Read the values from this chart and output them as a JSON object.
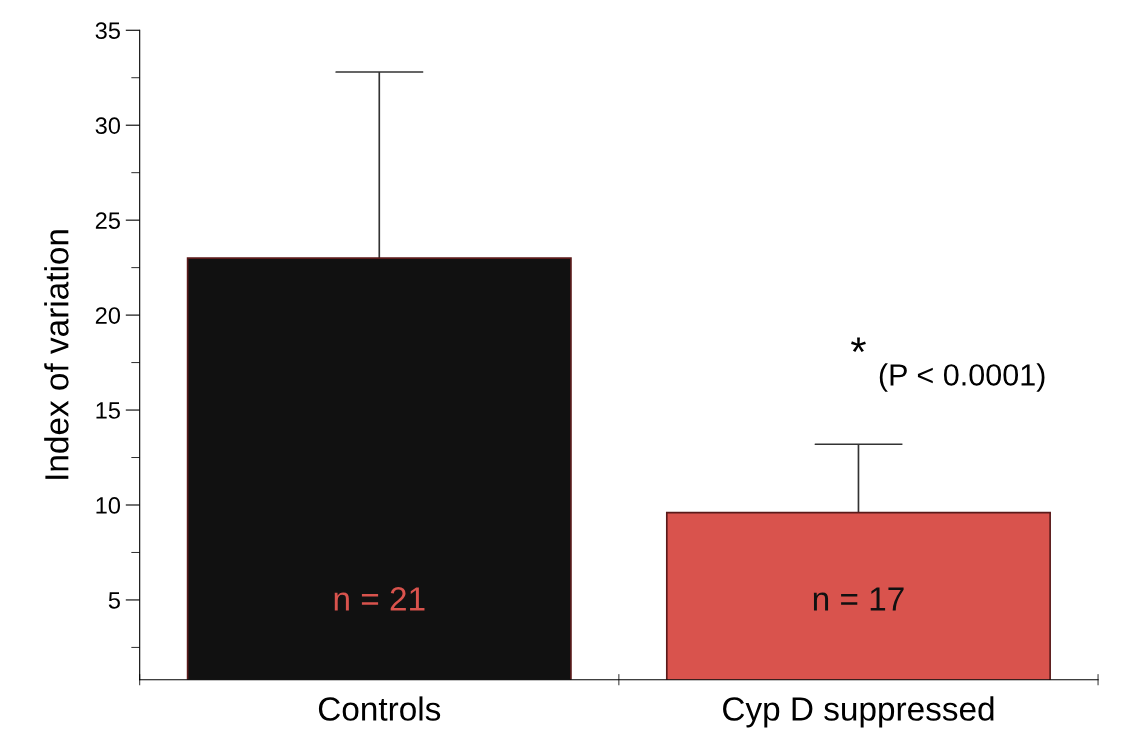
{
  "chart_data": {
    "type": "bar",
    "ylabel": "Index of variation",
    "categories": [
      "Controls",
      "Cyp D suppressed"
    ],
    "values": [
      23.0,
      9.6
    ],
    "errors": [
      9.8,
      3.6
    ],
    "colors": [
      "#111111",
      "#d9534d"
    ],
    "ylim": [
      0.8,
      35
    ],
    "yticks": [
      {
        "value": 2.5,
        "label": null
      },
      5,
      {
        "value": 7.5,
        "label": null
      },
      10,
      {
        "value": 12.5,
        "label": null
      },
      15,
      {
        "value": 17.5,
        "label": null
      },
      20,
      {
        "value": 22.5,
        "label": null
      },
      25,
      {
        "value": 27.5,
        "label": null
      },
      30,
      {
        "value": 32.5,
        "label": null
      },
      35
    ],
    "annotations": [
      "n = 21",
      "n = 17",
      "*",
      "(P < 0.0001)"
    ],
    "grid": false,
    "legend": false
  }
}
